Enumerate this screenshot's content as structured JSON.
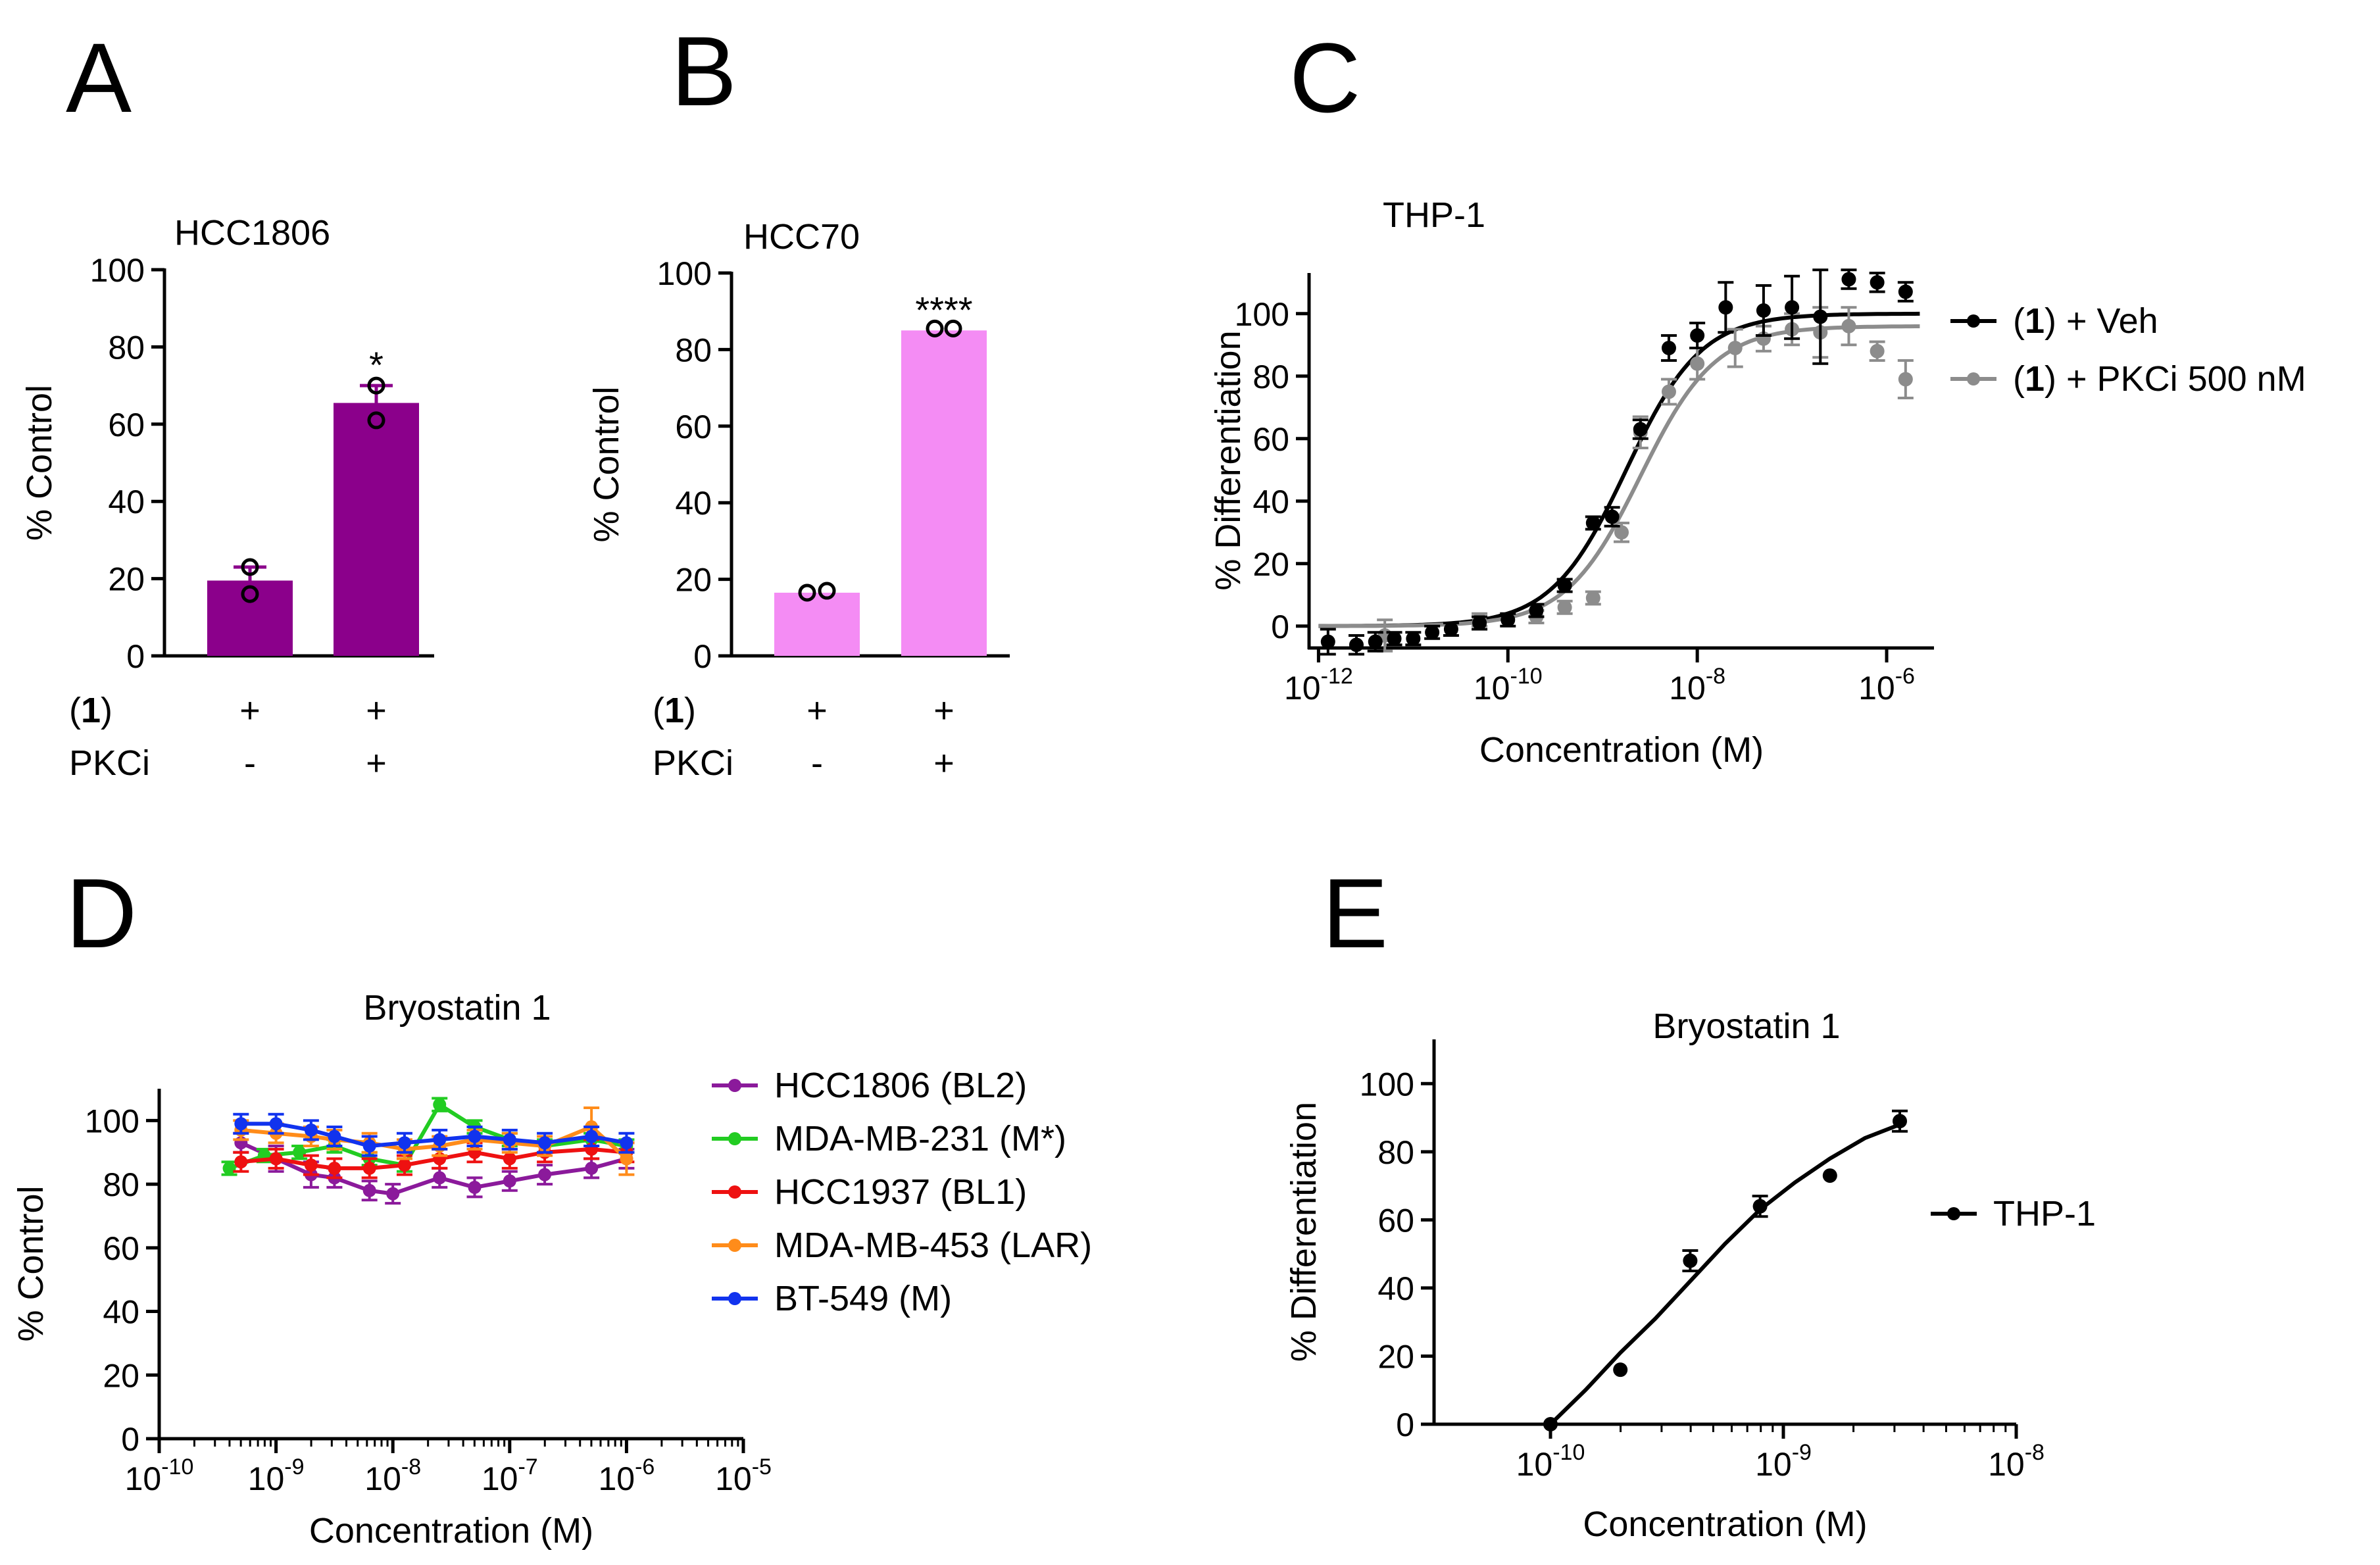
{
  "panel_labels": [
    "A",
    "B",
    "C",
    "D",
    "E"
  ],
  "chart_data": [
    {
      "id": "A",
      "type": "bar",
      "title": "HCC1806",
      "ylabel": "% Control",
      "ylim": [
        0,
        100
      ],
      "yticks": [
        "0",
        "20",
        "40",
        "60",
        "80",
        "100"
      ],
      "categories": [
        "(1) + / PKCi -",
        "(1) + / PKCi +"
      ],
      "values": [
        19.5,
        65.5
      ],
      "errors": [
        3.5,
        4.5
      ],
      "points": [
        [
          23,
          16
        ],
        [
          70,
          61
        ]
      ],
      "bar_color": "#8b008b",
      "significance": [
        "",
        "*"
      ],
      "condition_labels": [
        {
          "label": "(1)",
          "values": [
            "+",
            "+"
          ]
        },
        {
          "label": "PKCi",
          "values": [
            "-",
            "+"
          ]
        }
      ]
    },
    {
      "id": "B",
      "type": "bar",
      "title": "HCC70",
      "ylabel": "% Control",
      "ylim": [
        0,
        100
      ],
      "yticks": [
        "0",
        "20",
        "40",
        "60",
        "80",
        "100"
      ],
      "categories": [
        "(1) + / PKCi -",
        "(1) + / PKCi +"
      ],
      "values": [
        16.5,
        85
      ],
      "errors": [
        0,
        0
      ],
      "points": [
        [
          16.5,
          17
        ],
        [
          85.5,
          85.5
        ]
      ],
      "bar_color": "#f48cf4",
      "significance": [
        "",
        "****"
      ],
      "condition_labels": [
        {
          "label": "(1)",
          "values": [
            "+",
            "+"
          ]
        },
        {
          "label": "PKCi",
          "values": [
            "-",
            "+"
          ]
        }
      ]
    },
    {
      "id": "C",
      "type": "scatter",
      "title": "THP-1",
      "xlabel": "Concentration (M)",
      "ylabel": "% Differentiation",
      "xscale": "log",
      "xlim_log10": [
        -12.1,
        -5.5
      ],
      "ylim": [
        -7,
        113
      ],
      "xticks": [
        {
          "base": "10",
          "exp": "-12"
        },
        {
          "base": "10",
          "exp": "-10"
        },
        {
          "base": "10",
          "exp": "-8"
        },
        {
          "base": "10",
          "exp": "-6"
        }
      ],
      "yticks": [
        "0",
        "20",
        "40",
        "60",
        "80",
        "100"
      ],
      "legend": "right",
      "series": [
        {
          "name": "(1) + Veh",
          "color": "#000000",
          "x_log10": [
            -11.9,
            -11.6,
            -11.4,
            -11.2,
            -11.0,
            -10.8,
            -10.6,
            -10.3,
            -10.0,
            -9.7,
            -9.4,
            -9.1,
            -8.9,
            -8.6,
            -8.3,
            -8.0,
            -7.7,
            -7.3,
            -7.0,
            -6.7,
            -6.4,
            -6.1,
            -5.8
          ],
          "y": [
            -5,
            -6,
            -5,
            -4,
            -4,
            -2,
            -1,
            1,
            2,
            5,
            13,
            33,
            35,
            63,
            89,
            93,
            102,
            101,
            102,
            99,
            111,
            110,
            107
          ],
          "err": [
            4,
            3,
            3,
            2,
            2,
            2,
            2,
            2,
            2,
            2,
            2,
            2,
            3,
            3,
            4,
            4,
            8,
            8,
            10,
            15,
            3,
            3,
            3
          ],
          "fit": {
            "bottom": 0,
            "top": 100,
            "log_ec50": -8.75,
            "hill": 1.1
          }
        },
        {
          "name": "(1) + PKCi 500 nM",
          "color": "#8c8c8c",
          "x_log10": [
            -11.3,
            -10.3,
            -9.7,
            -9.4,
            -9.1,
            -8.8,
            -8.6,
            -8.3,
            -8.0,
            -7.6,
            -7.3,
            -7.0,
            -6.7,
            -6.4,
            -6.1,
            -5.8
          ],
          "y": [
            -3,
            2,
            3,
            6,
            9,
            30,
            62,
            75,
            84,
            89,
            92,
            95,
            94,
            96,
            88,
            79
          ],
          "err": [
            5,
            2,
            2,
            2,
            2,
            3,
            5,
            4,
            5,
            6,
            4,
            5,
            8,
            6,
            3,
            6
          ],
          "fit": {
            "bottom": 0,
            "top": 96,
            "log_ec50": -8.6,
            "hill": 1.1
          }
        }
      ]
    },
    {
      "id": "D",
      "type": "line",
      "title": "Bryostatin 1",
      "xlabel": "Concentration (M)",
      "ylabel": "% Control",
      "xscale": "log",
      "xlim_log10": [
        -10,
        -5
      ],
      "ylim": [
        0,
        110
      ],
      "xticks": [
        {
          "base": "10",
          "exp": "-10"
        },
        {
          "base": "10",
          "exp": "-9"
        },
        {
          "base": "10",
          "exp": "-8"
        },
        {
          "base": "10",
          "exp": "-7"
        },
        {
          "base": "10",
          "exp": "-6"
        },
        {
          "base": "10",
          "exp": "-5"
        }
      ],
      "yticks": [
        "0",
        "20",
        "40",
        "60",
        "80",
        "100"
      ],
      "legend": "right",
      "series": [
        {
          "name": "HCC1806 (BL2)",
          "color": "#8b1a9b",
          "x_log10": [
            -9.3,
            -9.0,
            -8.7,
            -8.5,
            -8.2,
            -8.0,
            -7.6,
            -7.3,
            -7.0,
            -6.7,
            -6.3,
            -6.0
          ],
          "y": [
            93,
            88,
            83,
            82,
            78,
            77,
            82,
            79,
            81,
            83,
            85,
            88
          ],
          "err": [
            3,
            4,
            4,
            3,
            3,
            3,
            3,
            3,
            3,
            3,
            3,
            3
          ]
        },
        {
          "name": "MDA-MB-231 (M*)",
          "color": "#22cc22",
          "x_log10": [
            -9.4,
            -9.1,
            -8.8,
            -8.5,
            -8.2,
            -7.9,
            -7.6,
            -7.3,
            -7.0,
            -6.7,
            -6.3,
            -6.0
          ],
          "y": [
            85,
            89,
            90,
            92,
            88,
            86,
            105,
            98,
            94,
            92,
            94,
            92
          ],
          "err": [
            2,
            2,
            2,
            2,
            2,
            2,
            2,
            2,
            2,
            2,
            2,
            2
          ]
        },
        {
          "name": "HCC1937 (BL1)",
          "color": "#ee1111",
          "x_log10": [
            -9.3,
            -9.0,
            -8.7,
            -8.5,
            -8.2,
            -7.9,
            -7.6,
            -7.3,
            -7.0,
            -6.7,
            -6.3,
            -6.0
          ],
          "y": [
            87,
            88,
            86,
            85,
            85,
            86,
            88,
            90,
            88,
            90,
            91,
            90
          ],
          "err": [
            3,
            3,
            3,
            3,
            3,
            3,
            3,
            3,
            3,
            3,
            3,
            3
          ]
        },
        {
          "name": "MDA-MB-453 (LAR)",
          "color": "#ff8c1a",
          "x_log10": [
            -9.3,
            -9.0,
            -8.7,
            -8.5,
            -8.2,
            -7.9,
            -7.6,
            -7.3,
            -7.0,
            -6.7,
            -6.3,
            -6.0
          ],
          "y": [
            97,
            96,
            95,
            94,
            93,
            91,
            92,
            94,
            93,
            92,
            98,
            88
          ],
          "err": [
            3,
            3,
            3,
            3,
            3,
            3,
            3,
            3,
            3,
            3,
            6,
            5
          ]
        },
        {
          "name": "BT-549 (M)",
          "color": "#1133ee",
          "x_log10": [
            -9.3,
            -9.0,
            -8.7,
            -8.5,
            -8.2,
            -7.9,
            -7.6,
            -7.3,
            -7.0,
            -6.7,
            -6.3,
            -6.0
          ],
          "y": [
            99,
            99,
            97,
            95,
            92,
            93,
            94,
            95,
            94,
            93,
            95,
            93
          ],
          "err": [
            3,
            3,
            3,
            3,
            3,
            3,
            3,
            3,
            3,
            3,
            3,
            3
          ]
        }
      ]
    },
    {
      "id": "E",
      "type": "scatter",
      "title": "Bryostatin 1",
      "xlabel": "Concentration (M)",
      "ylabel": "% Differentiation",
      "xscale": "log",
      "xlim_log10": [
        -10.5,
        -8
      ],
      "ylim": [
        0,
        113
      ],
      "xticks": [
        {
          "base": "10",
          "exp": "-10"
        },
        {
          "base": "10",
          "exp": "-9"
        },
        {
          "base": "10",
          "exp": "-8"
        }
      ],
      "yticks": [
        "0",
        "20",
        "40",
        "60",
        "80",
        "100"
      ],
      "legend": "right",
      "series": [
        {
          "name": "THP-1",
          "color": "#000000",
          "x_log10": [
            -10.0,
            -9.7,
            -9.4,
            -9.1,
            -8.8,
            -8.5
          ],
          "y": [
            0,
            16,
            48,
            64,
            73,
            89
          ],
          "err": [
            0,
            0,
            3,
            3,
            0,
            3
          ],
          "fit_points": [
            [
              -10.0,
              0
            ],
            [
              -9.85,
              10
            ],
            [
              -9.7,
              21
            ],
            [
              -9.55,
              31
            ],
            [
              -9.4,
              42
            ],
            [
              -9.25,
              53
            ],
            [
              -9.1,
              63
            ],
            [
              -8.95,
              71
            ],
            [
              -8.8,
              78
            ],
            [
              -8.65,
              84
            ],
            [
              -8.5,
              88
            ]
          ]
        }
      ]
    }
  ]
}
